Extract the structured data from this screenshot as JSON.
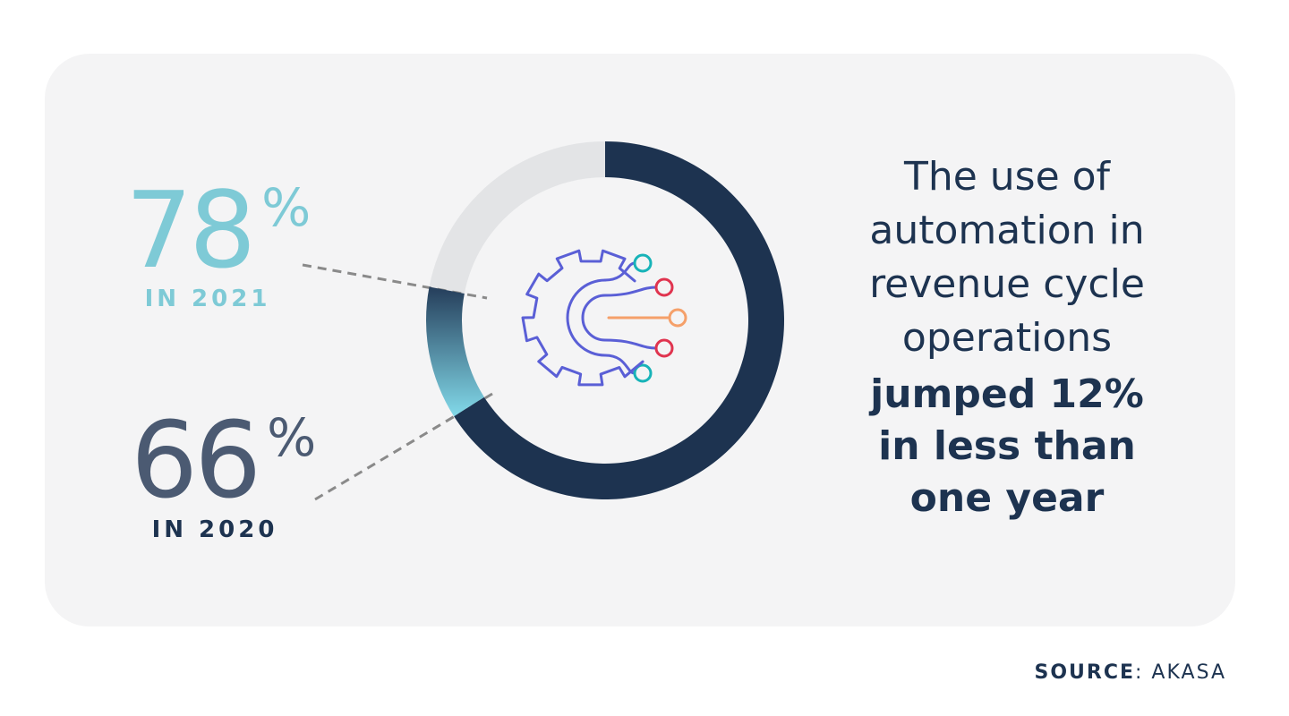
{
  "chart_data": {
    "type": "donut",
    "categories": [
      "IN 2020",
      "IN 2021"
    ],
    "values": [
      66,
      78
    ],
    "value_labels": [
      "66%",
      "78%"
    ],
    "colors": [
      "#1d3350",
      "#7fd0de"
    ],
    "label_colors": [
      "#4b5a72",
      "#7ecad6"
    ],
    "category_colors": [
      "#1d3350",
      "#7ecad6"
    ],
    "annotations": [
      "The use of",
      "automation in",
      "revenue cycle",
      "operations"
    ],
    "annotations_bold": [
      "jumped 12%",
      "in less than",
      "one year"
    ],
    "source_label": "SOURCE",
    "source": ": AKASA"
  }
}
